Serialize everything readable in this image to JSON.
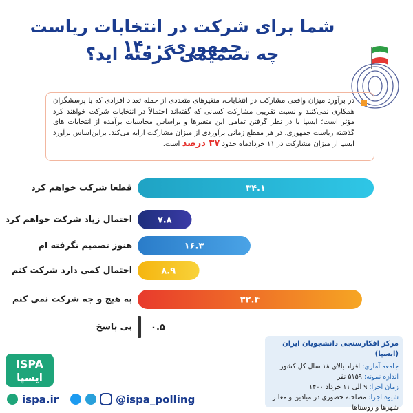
{
  "title_lines": [
    "شما برای شرکت در انتخابات ریاست جمهوری ۱۴۰۰",
    "چه تصمیمی گرفته اید؟"
  ],
  "note": {
    "text": "در برآورد میزان واقعی مشارکت در انتخابات، متغیرهای متعددی از جمله تعداد افرادی که با پرسشگران همکاری نمی‌کنند و نسبت تقریبی مشارکت کسانی که گفته‌اند احتمالاً در انتخابات شرکت خواهند کرد مؤثر است؛ ایسپا با در نظر گرفتن تمامی این متغیرها و براساس محاسبات برآمده از انتخابات های گذشته ریاست جمهوری، در هر مقطع زمانی برآوردی از میزان مشارکت ارایه می‌کند.",
    "conclusion_before": "براین‌اساس برآورد ایسپا از میزان مشارکت در ۱۱ خردادماه حدود",
    "highlight": "۳۷ درصد",
    "conclusion_after": "است."
  },
  "chart_data": {
    "type": "hbar",
    "categories": [
      "قطعا شرکت خواهم کرد",
      "احتمال زیاد شرکت خواهم کرد",
      "هنوز تصمیم نگرفته ام",
      "احتمال کمی دارد شرکت کنم",
      "به هیچ و جه شرکت نمی کنم",
      "بی پاسخ"
    ],
    "values": [
      34.1,
      7.8,
      16.3,
      8.9,
      32.4,
      0.5
    ],
    "value_labels": [
      "۳۴.۱",
      "۷.۸",
      "۱۶.۳",
      "۸.۹",
      "۳۲.۴",
      "۰.۵"
    ],
    "colors": [
      [
        "#1fa3c4",
        "#2fc6e6"
      ],
      [
        "#1e2f7c",
        "#3a3aa6"
      ],
      [
        "#2a7cc9",
        "#4aa3e6"
      ],
      [
        "#f5b50f",
        "#f8d23a"
      ],
      [
        "#e83a2c",
        "#f6a623"
      ],
      [
        "#333333",
        "#333333"
      ]
    ]
  },
  "info": {
    "title": "مرکز افکارسنجی دانشجویان ایران (ایسپا)",
    "rows": [
      [
        "جامعه آماری:",
        "افراد بالای ۱۸ سال کل کشور"
      ],
      [
        "اندازه نمونه:",
        "۵۱۵۹ نفر"
      ],
      [
        "زمان اجرا:",
        "۹ الی ۱۱ خرداد ۱۴۰۰"
      ],
      [
        "شیوه اجرا:",
        "مصاحبه حضوری در میادین و معابر شهرها و روستاها"
      ]
    ]
  },
  "logo": {
    "latin": "ISPA",
    "persian": "ایسپا"
  },
  "social": {
    "site": "ispa.ir",
    "handle": "@ispa_polling"
  }
}
